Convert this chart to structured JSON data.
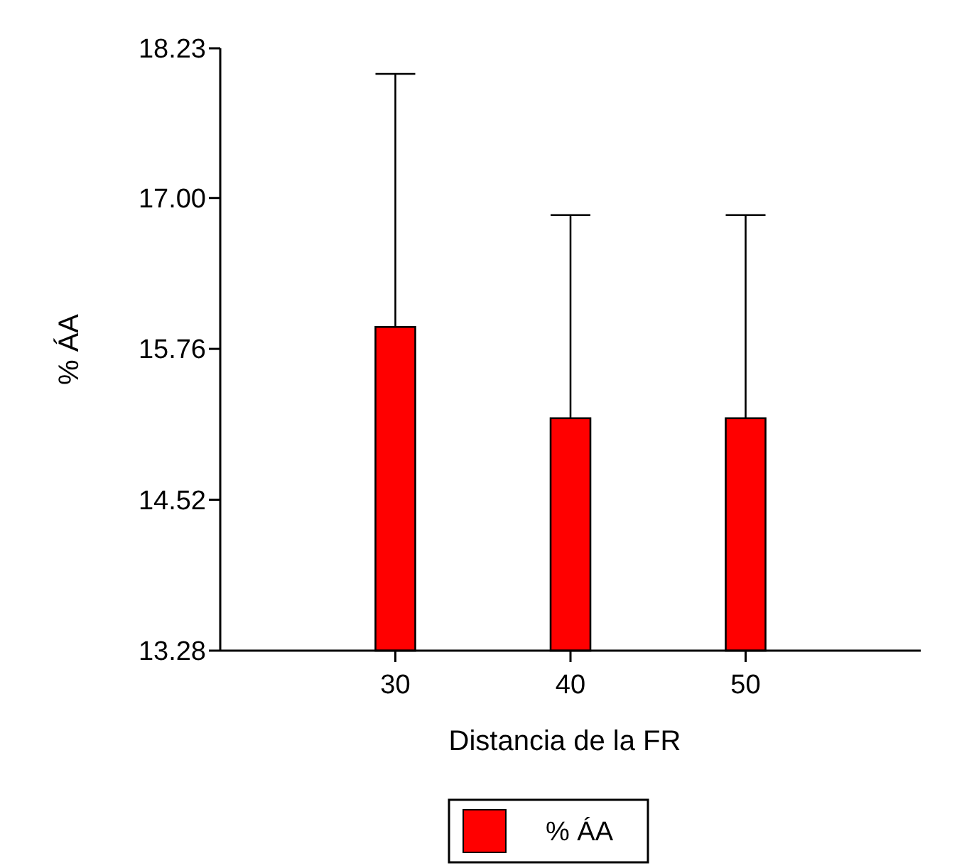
{
  "chart_data": {
    "type": "bar",
    "xlabel": "Distancia de la FR",
    "ylabel": "% ÁA",
    "x": [
      30,
      40,
      50
    ],
    "series": [
      {
        "name": "% ÁA",
        "color": "#ff0000",
        "values": [
          15.94,
          15.19,
          15.19
        ],
        "errors": [
          [
            15.94,
            18.02
          ],
          [
            15.19,
            16.86
          ],
          [
            15.19,
            16.86
          ]
        ]
      }
    ],
    "xlim": [
      20,
      60
    ],
    "xticks": [
      30,
      40,
      50
    ],
    "ylim": [
      13.28,
      18.23
    ],
    "yticks": [
      13.28,
      14.52,
      15.76,
      {
        "value": 17,
        "label": "17.00"
      },
      18.23
    ],
    "grid": false,
    "legend": "bottom"
  }
}
